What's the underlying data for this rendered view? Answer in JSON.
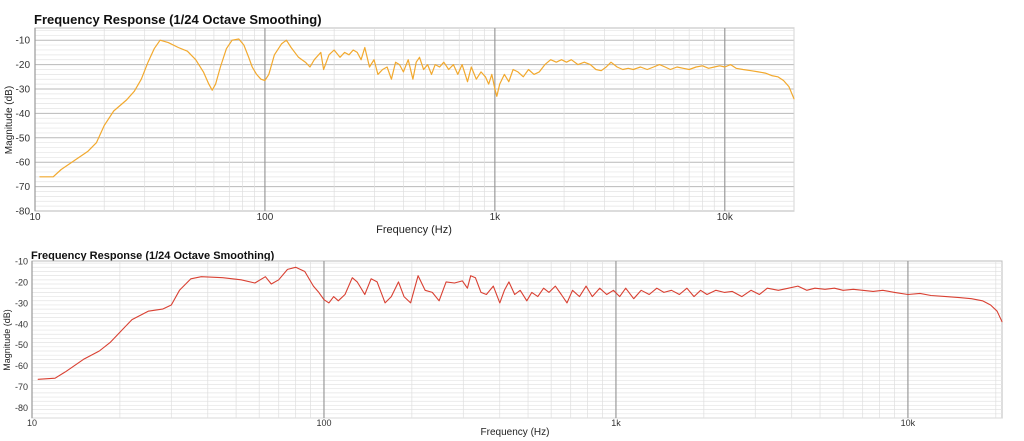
{
  "chart_data": [
    {
      "type": "line",
      "title": "Frequency Response (1/24 Octave Smoothing)",
      "xlabel": "Frequency (Hz)",
      "ylabel": "Magnitude (dB)",
      "x_scale": "log",
      "xlim": [
        10,
        20000
      ],
      "ylim": [
        -80,
        -5
      ],
      "grid": true,
      "x_tick_labels": [
        {
          "value": 10,
          "label": "10"
        },
        {
          "value": 100,
          "label": "100"
        },
        {
          "value": 1000,
          "label": "1k"
        },
        {
          "value": 10000,
          "label": "10k"
        }
      ],
      "y_ticks": [
        -10,
        -20,
        -30,
        -40,
        -50,
        -60,
        -70,
        -80
      ],
      "series": [
        {
          "color": "#F2A92E",
          "points": [
            [
              10.5,
              -66
            ],
            [
              12,
              -66
            ],
            [
              13,
              -63
            ],
            [
              15,
              -59
            ],
            [
              17,
              -55.5
            ],
            [
              18.5,
              -52
            ],
            [
              20,
              -45
            ],
            [
              22,
              -39
            ],
            [
              25,
              -34.5
            ],
            [
              27,
              -31
            ],
            [
              29,
              -26
            ],
            [
              31,
              -19
            ],
            [
              33,
              -13.5
            ],
            [
              35,
              -10
            ],
            [
              38,
              -11
            ],
            [
              42,
              -13
            ],
            [
              46,
              -14.5
            ],
            [
              50,
              -18
            ],
            [
              54,
              -23
            ],
            [
              57,
              -28
            ],
            [
              59,
              -30.5
            ],
            [
              61,
              -28
            ],
            [
              64,
              -21
            ],
            [
              68,
              -13.5
            ],
            [
              72,
              -10
            ],
            [
              77,
              -9.5
            ],
            [
              81,
              -12
            ],
            [
              85,
              -17
            ],
            [
              88,
              -21
            ],
            [
              92,
              -24
            ],
            [
              96,
              -26
            ],
            [
              100,
              -26.5
            ],
            [
              104,
              -24
            ],
            [
              110,
              -16
            ],
            [
              118,
              -11.5
            ],
            [
              124,
              -10
            ],
            [
              130,
              -13
            ],
            [
              140,
              -17
            ],
            [
              150,
              -19
            ],
            [
              157,
              -21
            ],
            [
              164,
              -18
            ],
            [
              175,
              -15
            ],
            [
              180,
              -22
            ],
            [
              190,
              -16
            ],
            [
              200,
              -14
            ],
            [
              212,
              -17
            ],
            [
              222,
              -15
            ],
            [
              232,
              -16
            ],
            [
              242,
              -14
            ],
            [
              252,
              -15
            ],
            [
              262,
              -18
            ],
            [
              272,
              -13
            ],
            [
              285,
              -21
            ],
            [
              298,
              -18
            ],
            [
              310,
              -24
            ],
            [
              325,
              -22
            ],
            [
              340,
              -21
            ],
            [
              355,
              -26
            ],
            [
              370,
              -19
            ],
            [
              385,
              -20
            ],
            [
              400,
              -23
            ],
            [
              420,
              -18
            ],
            [
              440,
              -26
            ],
            [
              455,
              -19
            ],
            [
              470,
              -17
            ],
            [
              490,
              -22
            ],
            [
              510,
              -20
            ],
            [
              530,
              -24
            ],
            [
              550,
              -20
            ],
            [
              575,
              -21
            ],
            [
              600,
              -19
            ],
            [
              630,
              -22
            ],
            [
              660,
              -20
            ],
            [
              690,
              -24
            ],
            [
              720,
              -20
            ],
            [
              760,
              -27
            ],
            [
              790,
              -21
            ],
            [
              830,
              -26
            ],
            [
              870,
              -23
            ],
            [
              910,
              -25
            ],
            [
              940,
              -28
            ],
            [
              970,
              -24
            ],
            [
              1000,
              -30
            ],
            [
              1020,
              -33
            ],
            [
              1050,
              -28
            ],
            [
              1100,
              -24
            ],
            [
              1150,
              -27
            ],
            [
              1200,
              -22
            ],
            [
              1260,
              -23
            ],
            [
              1330,
              -25
            ],
            [
              1400,
              -22
            ],
            [
              1480,
              -24
            ],
            [
              1560,
              -23
            ],
            [
              1650,
              -20
            ],
            [
              1750,
              -18
            ],
            [
              1850,
              -19
            ],
            [
              1950,
              -18
            ],
            [
              2050,
              -19
            ],
            [
              2150,
              -18
            ],
            [
              2300,
              -20
            ],
            [
              2450,
              -19
            ],
            [
              2600,
              -20
            ],
            [
              2750,
              -22
            ],
            [
              2900,
              -22.5
            ],
            [
              3050,
              -21
            ],
            [
              3200,
              -19
            ],
            [
              3400,
              -21
            ],
            [
              3600,
              -22
            ],
            [
              3800,
              -21.5
            ],
            [
              4000,
              -22
            ],
            [
              4300,
              -21
            ],
            [
              4600,
              -22
            ],
            [
              4900,
              -21
            ],
            [
              5200,
              -20
            ],
            [
              5500,
              -21
            ],
            [
              5800,
              -22
            ],
            [
              6200,
              -21
            ],
            [
              6600,
              -21.5
            ],
            [
              7000,
              -22
            ],
            [
              7500,
              -21
            ],
            [
              8000,
              -20.5
            ],
            [
              8500,
              -21.5
            ],
            [
              9000,
              -21
            ],
            [
              9500,
              -20.5
            ],
            [
              10000,
              -21
            ],
            [
              10600,
              -20
            ],
            [
              11200,
              -21.5
            ],
            [
              12000,
              -22
            ],
            [
              13000,
              -22.5
            ],
            [
              14000,
              -23
            ],
            [
              15000,
              -23.5
            ],
            [
              16000,
              -24.5
            ],
            [
              17000,
              -25
            ],
            [
              18000,
              -26.5
            ],
            [
              19000,
              -29
            ],
            [
              20000,
              -34
            ]
          ]
        }
      ]
    },
    {
      "type": "line",
      "title": "Frequency Response (1/24 Octave Smoothing)",
      "xlabel": "Frequency (Hz)",
      "ylabel": "Magnitude (dB)",
      "x_scale": "log",
      "xlim": [
        10,
        21000
      ],
      "ylim": [
        -85,
        -10
      ],
      "grid": true,
      "x_tick_labels": [
        {
          "value": 10,
          "label": "10"
        },
        {
          "value": 100,
          "label": "100"
        },
        {
          "value": 1000,
          "label": "1k"
        },
        {
          "value": 10000,
          "label": "10k"
        }
      ],
      "y_ticks": [
        -10,
        -20,
        -30,
        -40,
        -50,
        -60,
        -70,
        -80
      ],
      "series": [
        {
          "color": "#D94032",
          "points": [
            [
              10.5,
              -66.5
            ],
            [
              12,
              -66
            ],
            [
              13,
              -63
            ],
            [
              15,
              -57
            ],
            [
              17,
              -53
            ],
            [
              18.5,
              -49
            ],
            [
              20,
              -44
            ],
            [
              22,
              -38
            ],
            [
              25,
              -34
            ],
            [
              28,
              -33
            ],
            [
              30,
              -31
            ],
            [
              32,
              -24
            ],
            [
              35,
              -18.5
            ],
            [
              38,
              -17.5
            ],
            [
              45,
              -18
            ],
            [
              52,
              -19
            ],
            [
              58,
              -20.5
            ],
            [
              63,
              -17.5
            ],
            [
              66,
              -21
            ],
            [
              70,
              -19
            ],
            [
              75,
              -14
            ],
            [
              80,
              -13
            ],
            [
              86,
              -15
            ],
            [
              92,
              -22
            ],
            [
              96,
              -25
            ],
            [
              100,
              -28.5
            ],
            [
              104,
              -30
            ],
            [
              108,
              -27
            ],
            [
              112,
              -29
            ],
            [
              118,
              -26
            ],
            [
              125,
              -18
            ],
            [
              130,
              -20
            ],
            [
              138,
              -26
            ],
            [
              145,
              -18.5
            ],
            [
              152,
              -20
            ],
            [
              162,
              -30
            ],
            [
              170,
              -27
            ],
            [
              180,
              -20
            ],
            [
              188,
              -27
            ],
            [
              198,
              -30
            ],
            [
              210,
              -17
            ],
            [
              222,
              -24
            ],
            [
              235,
              -25
            ],
            [
              248,
              -29
            ],
            [
              262,
              -20
            ],
            [
              280,
              -20.5
            ],
            [
              298,
              -19.5
            ],
            [
              310,
              -23
            ],
            [
              318,
              -17
            ],
            [
              330,
              -18
            ],
            [
              345,
              -25
            ],
            [
              360,
              -26
            ],
            [
              380,
              -22
            ],
            [
              400,
              -30
            ],
            [
              415,
              -24
            ],
            [
              430,
              -20
            ],
            [
              450,
              -26
            ],
            [
              470,
              -24
            ],
            [
              495,
              -29
            ],
            [
              515,
              -25
            ],
            [
              540,
              -27
            ],
            [
              565,
              -23
            ],
            [
              590,
              -25
            ],
            [
              620,
              -22
            ],
            [
              650,
              -26
            ],
            [
              680,
              -30
            ],
            [
              710,
              -24
            ],
            [
              750,
              -27
            ],
            [
              790,
              -22
            ],
            [
              830,
              -27
            ],
            [
              880,
              -23
            ],
            [
              930,
              -26
            ],
            [
              980,
              -24
            ],
            [
              1030,
              -27
            ],
            [
              1080,
              -23
            ],
            [
              1150,
              -28
            ],
            [
              1220,
              -24
            ],
            [
              1300,
              -26
            ],
            [
              1380,
              -23
            ],
            [
              1460,
              -25
            ],
            [
              1550,
              -24
            ],
            [
              1650,
              -26
            ],
            [
              1750,
              -23
            ],
            [
              1850,
              -27
            ],
            [
              1950,
              -24
            ],
            [
              2050,
              -26
            ],
            [
              2200,
              -24
            ],
            [
              2350,
              -25
            ],
            [
              2500,
              -24.5
            ],
            [
              2700,
              -27
            ],
            [
              2900,
              -24
            ],
            [
              3100,
              -26
            ],
            [
              3300,
              -23
            ],
            [
              3600,
              -24
            ],
            [
              3900,
              -23
            ],
            [
              4200,
              -22
            ],
            [
              4500,
              -24
            ],
            [
              4800,
              -23
            ],
            [
              5200,
              -23.5
            ],
            [
              5600,
              -23
            ],
            [
              6000,
              -24
            ],
            [
              6500,
              -23.5
            ],
            [
              7000,
              -24
            ],
            [
              7600,
              -24.5
            ],
            [
              8200,
              -24
            ],
            [
              9000,
              -25
            ],
            [
              10000,
              -26
            ],
            [
              11000,
              -25.5
            ],
            [
              12000,
              -26.5
            ],
            [
              13500,
              -27
            ],
            [
              15000,
              -27.5
            ],
            [
              16500,
              -28
            ],
            [
              18000,
              -29
            ],
            [
              19200,
              -31
            ],
            [
              20200,
              -34
            ],
            [
              21000,
              -39
            ]
          ]
        }
      ]
    }
  ]
}
